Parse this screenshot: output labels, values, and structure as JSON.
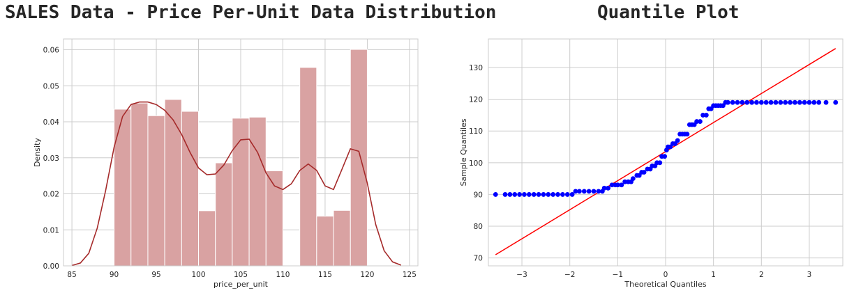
{
  "titles": {
    "left": "SALES Data - Price Per-Unit Data Distribution",
    "right": "Quantile Plot"
  },
  "colors": {
    "hist_fill": "#d9a2a2",
    "kde_line": "#a52a2a",
    "qq_points": "#0000ff",
    "qq_line": "#ff0000",
    "grid": "#cccccc",
    "frame": "#cccccc"
  },
  "chart_data": [
    {
      "type": "bar",
      "subtype": "histogram-with-kde",
      "title": "SALES Data - Price Per-Unit Data Distribution",
      "xlabel": "price_per_unit",
      "ylabel": "Density",
      "xlim": [
        84,
        126
      ],
      "ylim": [
        0,
        0.063
      ],
      "xticks": [
        85,
        90,
        95,
        100,
        105,
        110,
        115,
        120,
        125
      ],
      "yticks": [
        0.0,
        0.01,
        0.02,
        0.03,
        0.04,
        0.05,
        0.06
      ],
      "ytick_labels": [
        "0.00",
        "0.01",
        "0.02",
        "0.03",
        "0.04",
        "0.05",
        "0.06"
      ],
      "grid": true,
      "bins": [
        {
          "x0": 90,
          "x1": 92,
          "density": 0.0435
        },
        {
          "x0": 92,
          "x1": 94,
          "density": 0.0452
        },
        {
          "x0": 94,
          "x1": 96,
          "density": 0.0417
        },
        {
          "x0": 96,
          "x1": 98,
          "density": 0.0462
        },
        {
          "x0": 98,
          "x1": 100,
          "density": 0.0429
        },
        {
          "x0": 100,
          "x1": 102,
          "density": 0.0153
        },
        {
          "x0": 102,
          "x1": 104,
          "density": 0.0286
        },
        {
          "x0": 104,
          "x1": 106,
          "density": 0.041
        },
        {
          "x0": 106,
          "x1": 108,
          "density": 0.0413
        },
        {
          "x0": 108,
          "x1": 110,
          "density": 0.0264
        },
        {
          "x0": 110,
          "x1": 112,
          "density": 0.0
        },
        {
          "x0": 112,
          "x1": 114,
          "density": 0.0551
        },
        {
          "x0": 114,
          "x1": 116,
          "density": 0.0138
        },
        {
          "x0": 116,
          "x1": 118,
          "density": 0.0154
        },
        {
          "x0": 118,
          "x1": 120,
          "density": 0.0601
        }
      ],
      "kde": {
        "x": [
          85,
          86,
          87,
          88,
          89,
          90,
          91,
          92,
          93,
          94,
          95,
          96,
          97,
          98,
          99,
          100,
          101,
          102,
          103,
          104,
          105,
          106,
          107,
          108,
          109,
          110,
          111,
          112,
          113,
          114,
          115,
          116,
          117,
          118,
          119,
          120,
          121,
          122,
          123,
          124
        ],
        "y": [
          0.0001,
          0.0008,
          0.0035,
          0.0105,
          0.021,
          0.033,
          0.0415,
          0.0448,
          0.0455,
          0.0455,
          0.0448,
          0.0432,
          0.0405,
          0.0365,
          0.0315,
          0.0272,
          0.0253,
          0.0255,
          0.028,
          0.032,
          0.035,
          0.0352,
          0.0315,
          0.0258,
          0.0222,
          0.0212,
          0.0228,
          0.0265,
          0.0283,
          0.0265,
          0.0222,
          0.0212,
          0.0268,
          0.0325,
          0.0318,
          0.023,
          0.0115,
          0.0042,
          0.0011,
          0.0002
        ]
      }
    },
    {
      "type": "scatter",
      "subtype": "qq-plot",
      "title": "Quantile Plot",
      "xlabel": "Theoretical Quantiles",
      "ylabel": "Sample Quantiles",
      "xlim": [
        -3.7,
        3.7
      ],
      "ylim": [
        67.5,
        139
      ],
      "xticks": [
        -3,
        -2,
        -1,
        0,
        1,
        2,
        3
      ],
      "xtick_labels": [
        "−3",
        "−2",
        "−1",
        "0",
        "1",
        "2",
        "3"
      ],
      "yticks": [
        70,
        80,
        90,
        100,
        110,
        120,
        130
      ],
      "grid": true,
      "reference_line": {
        "x": [
          -3.55,
          3.55
        ],
        "y": [
          71,
          136
        ]
      },
      "points": {
        "x": [
          -3.55,
          -3.35,
          -3.25,
          -3.15,
          -3.05,
          -2.95,
          -2.85,
          -2.75,
          -2.65,
          -2.55,
          -2.45,
          -2.35,
          -2.25,
          -2.15,
          -2.05,
          -1.95,
          -1.88,
          -1.8,
          -1.7,
          -1.6,
          -1.5,
          -1.4,
          -1.32,
          -1.28,
          -1.2,
          -1.12,
          -1.05,
          -1.0,
          -0.92,
          -0.85,
          -0.78,
          -0.72,
          -0.68,
          -0.6,
          -0.55,
          -0.5,
          -0.45,
          -0.38,
          -0.32,
          -0.28,
          -0.22,
          -0.18,
          -0.12,
          -0.08,
          -0.02,
          0.02,
          0.05,
          0.1,
          0.15,
          0.2,
          0.25,
          0.3,
          0.35,
          0.4,
          0.45,
          0.5,
          0.55,
          0.6,
          0.65,
          0.72,
          0.78,
          0.85,
          0.9,
          0.95,
          1.0,
          1.05,
          1.1,
          1.15,
          1.2,
          1.25,
          1.3,
          1.4,
          1.5,
          1.6,
          1.7,
          1.8,
          1.9,
          2.0,
          2.1,
          2.2,
          2.3,
          2.4,
          2.5,
          2.6,
          2.7,
          2.8,
          2.9,
          3.0,
          3.1,
          3.2,
          3.35,
          3.55
        ],
        "y": [
          90,
          90,
          90,
          90,
          90,
          90,
          90,
          90,
          90,
          90,
          90,
          90,
          90,
          90,
          90,
          90,
          91,
          91,
          91,
          91,
          91,
          91,
          91,
          92,
          92,
          93,
          93,
          93,
          93,
          94,
          94,
          94,
          95,
          96,
          96,
          97,
          97,
          98,
          98,
          99,
          99,
          100,
          100,
          102,
          102,
          104,
          105,
          105,
          106,
          106,
          107,
          109,
          109,
          109,
          109,
          112,
          112,
          112,
          113,
          113,
          115,
          115,
          117,
          117,
          118,
          118,
          118,
          118,
          118,
          119,
          119,
          119,
          119,
          119,
          119,
          119,
          119,
          119,
          119,
          119,
          119,
          119,
          119,
          119,
          119,
          119,
          119,
          119,
          119,
          119,
          119,
          119
        ]
      }
    }
  ]
}
